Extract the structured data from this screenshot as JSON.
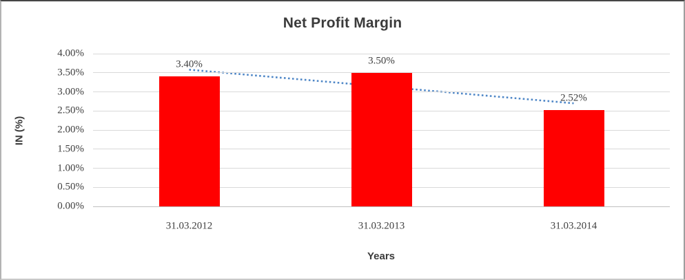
{
  "chart_data": {
    "type": "bar",
    "title": "Net Profit Margin",
    "xlabel": "Years",
    "ylabel": "IN (%)",
    "categories": [
      "31.03.2012",
      "31.03.2013",
      "31.03.2014"
    ],
    "values": [
      3.4,
      3.5,
      2.52
    ],
    "data_labels": [
      "3.40%",
      "3.50%",
      "2.52%"
    ],
    "ylim": [
      0,
      4.0
    ],
    "ytick_step": 0.5,
    "ytick_labels": [
      "0.00%",
      "0.50%",
      "1.00%",
      "1.50%",
      "2.00%",
      "2.50%",
      "3.00%",
      "3.50%",
      "4.00%"
    ],
    "grid": true,
    "legend_position": "none",
    "bar_color": "#ff0000",
    "gridline_color": "#d9d9d9",
    "axis_line_color": "#bfbfbf",
    "text_color": "#3f3f3f",
    "trendline": {
      "type": "linear",
      "style": "dotted",
      "color": "#4f87c7",
      "start_value": 3.58,
      "end_value": 2.7
    }
  }
}
